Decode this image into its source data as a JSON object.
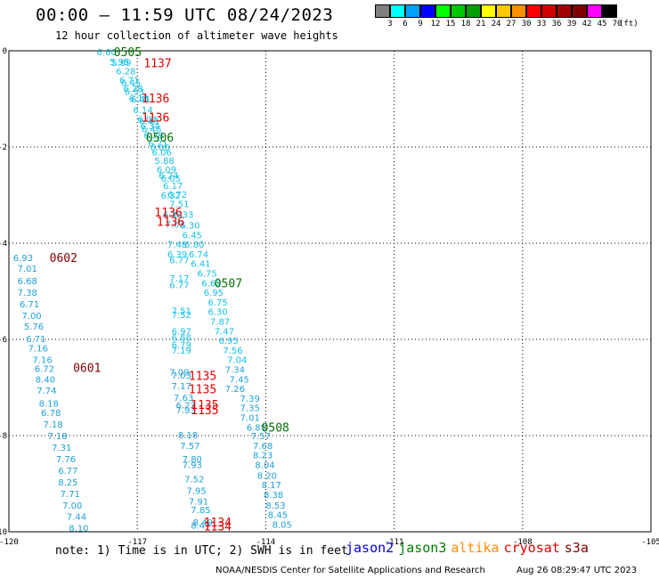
{
  "header": {
    "title": "00:00 – 11:59 UTC 08/24/2023",
    "subtitle": "12 hour collection of altimeter wave heights"
  },
  "legend": {
    "unit": "(ft)",
    "bins": [
      {
        "label": "3",
        "color": "#808080"
      },
      {
        "label": "6",
        "color": "#00ffff"
      },
      {
        "label": "9",
        "color": "#00a0ff"
      },
      {
        "label": "12",
        "color": "#0000ff"
      },
      {
        "label": "15",
        "color": "#00ff00"
      },
      {
        "label": "18",
        "color": "#00c800"
      },
      {
        "label": "21",
        "color": "#00a000"
      },
      {
        "label": "24",
        "color": "#ffff00"
      },
      {
        "label": "27",
        "color": "#ffc800"
      },
      {
        "label": "30",
        "color": "#ff9000"
      },
      {
        "label": "33",
        "color": "#ff0000"
      },
      {
        "label": "36",
        "color": "#d00000"
      },
      {
        "label": "39",
        "color": "#a00000"
      },
      {
        "label": "42",
        "color": "#800000"
      },
      {
        "label": "45",
        "color": "#ff00ff"
      },
      {
        "label": "70",
        "color": "#000000"
      }
    ]
  },
  "map": {
    "lon_ticks": [
      "-120",
      "-117",
      "-114",
      "-111",
      "-108",
      "-105"
    ],
    "lat_ticks": [
      "0",
      "-2",
      "-4",
      "-6",
      "-8",
      "-10"
    ],
    "lon_range": [
      -120,
      -105
    ],
    "lat_range": [
      -10,
      0
    ],
    "colors": {
      "cyan": "#16c0e6",
      "blue": "#1ea0d6",
      "jason3": "#007000",
      "cryosat": "#e00000",
      "s3a": "#800000"
    },
    "tracks": [
      {
        "id": "t1",
        "color": "cyan",
        "values": [
          {
            "text": "6.60",
            "lon": -117.95,
            "lat": -0.02
          },
          {
            "text": "5.95",
            "lon": -117.65,
            "lat": -0.22
          },
          {
            "text": "5.99",
            "lon": -117.6,
            "lat": -0.24
          },
          {
            "text": "6.28",
            "lon": -117.5,
            "lat": -0.42
          },
          {
            "text": "6.71",
            "lon": -117.42,
            "lat": -0.6
          },
          {
            "text": "6.45",
            "lon": -117.38,
            "lat": -0.66
          },
          {
            "text": "6.28",
            "lon": -117.33,
            "lat": -0.78
          },
          {
            "text": "6.53",
            "lon": -117.3,
            "lat": -0.84
          },
          {
            "text": "6.18",
            "lon": -117.2,
            "lat": -0.98
          },
          {
            "text": "6.41",
            "lon": -117.15,
            "lat": -1.0
          },
          {
            "text": "6.14",
            "lon": -117.1,
            "lat": -1.22
          },
          {
            "text": "6.03",
            "lon": -117.0,
            "lat": -1.42
          },
          {
            "text": "6.43",
            "lon": -116.96,
            "lat": -1.45
          },
          {
            "text": "6.34",
            "lon": -116.93,
            "lat": -1.56
          },
          {
            "text": "6.46",
            "lon": -116.9,
            "lat": -1.62
          },
          {
            "text": "6.26",
            "lon": -116.85,
            "lat": -1.75
          },
          {
            "text": "6.21",
            "lon": -116.75,
            "lat": -1.92
          },
          {
            "text": "6.00",
            "lon": -116.7,
            "lat": -2.0
          },
          {
            "text": "6.06",
            "lon": -116.66,
            "lat": -2.1
          },
          {
            "text": "5.88",
            "lon": -116.6,
            "lat": -2.28
          },
          {
            "text": "6.09",
            "lon": -116.55,
            "lat": -2.46
          },
          {
            "text": "6.24",
            "lon": -116.5,
            "lat": -2.58
          },
          {
            "text": "6.05",
            "lon": -116.45,
            "lat": -2.65
          },
          {
            "text": "6.17",
            "lon": -116.4,
            "lat": -2.8
          },
          {
            "text": "6.32",
            "lon": -116.45,
            "lat": -3.0
          },
          {
            "text": "6.72",
            "lon": -116.3,
            "lat": -2.98
          },
          {
            "text": "7.51",
            "lon": -116.25,
            "lat": -3.18
          },
          {
            "text": "6.24",
            "lon": -116.4,
            "lat": -3.4
          },
          {
            "text": "6.33",
            "lon": -116.15,
            "lat": -3.4
          },
          {
            "text": "7.03",
            "lon": -116.35,
            "lat": -3.6
          },
          {
            "text": "6.30",
            "lon": -116.0,
            "lat": -3.62
          },
          {
            "text": "6.45",
            "lon": -115.95,
            "lat": -3.82
          },
          {
            "text": "7.48",
            "lon": -116.3,
            "lat": -4.02
          },
          {
            "text": "6.80",
            "lon": -115.9,
            "lat": -4.02
          },
          {
            "text": "6.39",
            "lon": -116.3,
            "lat": -4.22
          },
          {
            "text": "6.74",
            "lon": -115.8,
            "lat": -4.22
          },
          {
            "text": "6.77",
            "lon": -116.25,
            "lat": -4.34
          },
          {
            "text": "6.41",
            "lon": -115.75,
            "lat": -4.42
          },
          {
            "text": "6.75",
            "lon": -115.6,
            "lat": -4.62
          },
          {
            "text": "7.17",
            "lon": -116.25,
            "lat": -4.72
          },
          {
            "text": "6.62",
            "lon": -115.5,
            "lat": -4.82
          },
          {
            "text": "6.77",
            "lon": -116.25,
            "lat": -4.86
          },
          {
            "text": "6.95",
            "lon": -115.45,
            "lat": -5.02
          },
          {
            "text": "6.75",
            "lon": -115.35,
            "lat": -5.22
          },
          {
            "text": "7.51",
            "lon": -116.2,
            "lat": -5.4
          },
          {
            "text": "6.30",
            "lon": -115.35,
            "lat": -5.42
          },
          {
            "text": "7.52",
            "lon": -116.2,
            "lat": -5.48
          },
          {
            "text": "7.87",
            "lon": -115.3,
            "lat": -5.62
          },
          {
            "text": "6.97",
            "lon": -116.2,
            "lat": -5.82
          },
          {
            "text": "7.47",
            "lon": -115.2,
            "lat": -5.82
          },
          {
            "text": "6.88",
            "lon": -116.2,
            "lat": -5.95
          },
          {
            "text": "6.95",
            "lon": -115.1,
            "lat": -6.02
          },
          {
            "text": "6.79",
            "lon": -116.2,
            "lat": -6.1
          },
          {
            "text": "7.19",
            "lon": -116.2,
            "lat": -6.22
          },
          {
            "text": "7.56",
            "lon": -115.0,
            "lat": -6.22
          },
          {
            "text": "7.04",
            "lon": -114.9,
            "lat": -6.42
          }
        ]
      },
      {
        "id": "t2",
        "color": "blue",
        "values": [
          {
            "text": "6.93",
            "lon": -119.9,
            "lat": -4.3
          },
          {
            "text": "7.01",
            "lon": -119.8,
            "lat": -4.52
          },
          {
            "text": "6.68",
            "lon": -119.8,
            "lat": -4.78
          },
          {
            "text": "7.38",
            "lon": -119.8,
            "lat": -5.02
          },
          {
            "text": "6.71",
            "lon": -119.75,
            "lat": -5.26
          },
          {
            "text": "7.00",
            "lon": -119.7,
            "lat": -5.5
          },
          {
            "text": "5.76",
            "lon": -119.65,
            "lat": -5.72
          },
          {
            "text": "6.71",
            "lon": -119.6,
            "lat": -5.98
          },
          {
            "text": "7.16",
            "lon": -119.55,
            "lat": -6.18
          },
          {
            "text": "7.16",
            "lon": -119.45,
            "lat": -6.42
          },
          {
            "text": "6.72",
            "lon": -119.4,
            "lat": -6.6
          },
          {
            "text": "8.40",
            "lon": -119.38,
            "lat": -6.82
          },
          {
            "text": "7.74",
            "lon": -119.35,
            "lat": -7.06
          },
          {
            "text": "8.18",
            "lon": -119.3,
            "lat": -7.32
          },
          {
            "text": "6.78",
            "lon": -119.25,
            "lat": -7.52
          },
          {
            "text": "7.18",
            "lon": -119.2,
            "lat": -7.76
          },
          {
            "text": "7.18",
            "lon": -119.1,
            "lat": -8.0
          },
          {
            "text": "7.31",
            "lon": -119.0,
            "lat": -8.24
          },
          {
            "text": "7.76",
            "lon": -118.9,
            "lat": -8.48
          },
          {
            "text": "6.77",
            "lon": -118.85,
            "lat": -8.72
          },
          {
            "text": "8.25",
            "lon": -118.85,
            "lat": -8.96
          },
          {
            "text": "7.71",
            "lon": -118.8,
            "lat": -9.2
          },
          {
            "text": "7.00",
            "lon": -118.75,
            "lat": -9.44
          },
          {
            "text": "7.44",
            "lon": -118.65,
            "lat": -9.68
          },
          {
            "text": "8.10",
            "lon": -118.6,
            "lat": -9.92
          }
        ]
      },
      {
        "id": "t3",
        "color": "blue",
        "values": [
          {
            "text": "7.09",
            "lon": -116.25,
            "lat": -6.68
          },
          {
            "text": "7.03",
            "lon": -116.2,
            "lat": -6.74
          },
          {
            "text": "7.17",
            "lon": -116.2,
            "lat": -6.96
          },
          {
            "text": "7.63",
            "lon": -116.15,
            "lat": -7.2
          },
          {
            "text": "6.23",
            "lon": -116.1,
            "lat": -7.36
          },
          {
            "text": "7.93",
            "lon": -116.1,
            "lat": -7.46
          },
          {
            "text": "8.18",
            "lon": -116.05,
            "lat": -7.98
          },
          {
            "text": "7.57",
            "lon": -116.0,
            "lat": -8.2
          },
          {
            "text": "7.80",
            "lon": -115.95,
            "lat": -8.48
          },
          {
            "text": "7.93",
            "lon": -115.95,
            "lat": -8.6
          },
          {
            "text": "7.52",
            "lon": -115.9,
            "lat": -8.9
          },
          {
            "text": "7.95",
            "lon": -115.85,
            "lat": -9.14
          },
          {
            "text": "7.91",
            "lon": -115.8,
            "lat": -9.36
          },
          {
            "text": "7.85",
            "lon": -115.75,
            "lat": -9.54
          },
          {
            "text": "8.49",
            "lon": -115.7,
            "lat": -9.8
          },
          {
            "text": "8.47",
            "lon": -115.75,
            "lat": -9.86
          }
        ]
      },
      {
        "id": "t4",
        "color": "blue",
        "values": [
          {
            "text": "7.34",
            "lon": -114.95,
            "lat": -6.62
          },
          {
            "text": "7.45",
            "lon": -114.85,
            "lat": -6.82
          },
          {
            "text": "7.26",
            "lon": -114.95,
            "lat": -7.02
          },
          {
            "text": "7.39",
            "lon": -114.6,
            "lat": -7.22
          },
          {
            "text": "7.35",
            "lon": -114.6,
            "lat": -7.42
          },
          {
            "text": "7.01",
            "lon": -114.6,
            "lat": -7.62
          },
          {
            "text": "6.85",
            "lon": -114.45,
            "lat": -7.82
          },
          {
            "text": "7.57",
            "lon": -114.35,
            "lat": -8.0
          },
          {
            "text": "7.68",
            "lon": -114.3,
            "lat": -8.2
          },
          {
            "text": "8.23",
            "lon": -114.3,
            "lat": -8.4
          },
          {
            "text": "8.04",
            "lon": -114.25,
            "lat": -8.6
          },
          {
            "text": "8.20",
            "lon": -114.2,
            "lat": -8.82
          },
          {
            "text": "8.17",
            "lon": -114.1,
            "lat": -9.02
          },
          {
            "text": "8.38",
            "lon": -114.05,
            "lat": -9.22
          },
          {
            "text": "8.53",
            "lon": -114.0,
            "lat": -9.44
          },
          {
            "text": "8.45",
            "lon": -113.95,
            "lat": -9.64
          },
          {
            "text": "8.05",
            "lon": -113.85,
            "lat": -9.84
          }
        ]
      }
    ],
    "pass_labels": [
      {
        "text": "0505",
        "lon": -117.55,
        "lat": -0.02,
        "color": "jason3"
      },
      {
        "text": "1137",
        "lon": -116.85,
        "lat": -0.25,
        "color": "cryosat"
      },
      {
        "text": "1136",
        "lon": -116.9,
        "lat": -0.98,
        "color": "cryosat"
      },
      {
        "text": "1136",
        "lon": -116.9,
        "lat": -1.38,
        "color": "cryosat"
      },
      {
        "text": "0506",
        "lon": -116.8,
        "lat": -1.8,
        "color": "jason3"
      },
      {
        "text": "1136",
        "lon": -116.6,
        "lat": -3.35,
        "color": "cryosat"
      },
      {
        "text": "1136",
        "lon": -116.55,
        "lat": -3.55,
        "color": "cryosat"
      },
      {
        "text": "0602",
        "lon": -119.05,
        "lat": -4.3,
        "color": "s3a"
      },
      {
        "text": "0507",
        "lon": -115.2,
        "lat": -4.82,
        "color": "jason3"
      },
      {
        "text": "0601",
        "lon": -118.5,
        "lat": -6.58,
        "color": "s3a"
      },
      {
        "text": "1135",
        "lon": -115.8,
        "lat": -6.75,
        "color": "cryosat"
      },
      {
        "text": "1135",
        "lon": -115.8,
        "lat": -7.03,
        "color": "cryosat"
      },
      {
        "text": "1135",
        "lon": -115.75,
        "lat": -7.35,
        "color": "cryosat"
      },
      {
        "text": "1135",
        "lon": -115.75,
        "lat": -7.46,
        "color": "cryosat"
      },
      {
        "text": "0508",
        "lon": -114.1,
        "lat": -7.82,
        "color": "jason3"
      },
      {
        "text": "1134",
        "lon": -115.45,
        "lat": -9.8,
        "color": "cryosat"
      },
      {
        "text": "1134",
        "lon": -115.45,
        "lat": -9.88,
        "color": "cryosat"
      }
    ]
  },
  "footer": {
    "note": "note:  1) Time is in UTC;  2) SWH is in feet",
    "missions": [
      {
        "name": "jason2",
        "color": "#0000d0"
      },
      {
        "name": "jason3",
        "color": "#008000"
      },
      {
        "name": "altika",
        "color": "#ff8c00"
      },
      {
        "name": "cryosat",
        "color": "#e00000"
      },
      {
        "name": "s3a",
        "color": "#800000"
      }
    ],
    "credit": "NOAA/NESDIS Center for Satellite Applications and Research",
    "timestamp": "Aug 26 08:29:47 UTC 2023"
  }
}
